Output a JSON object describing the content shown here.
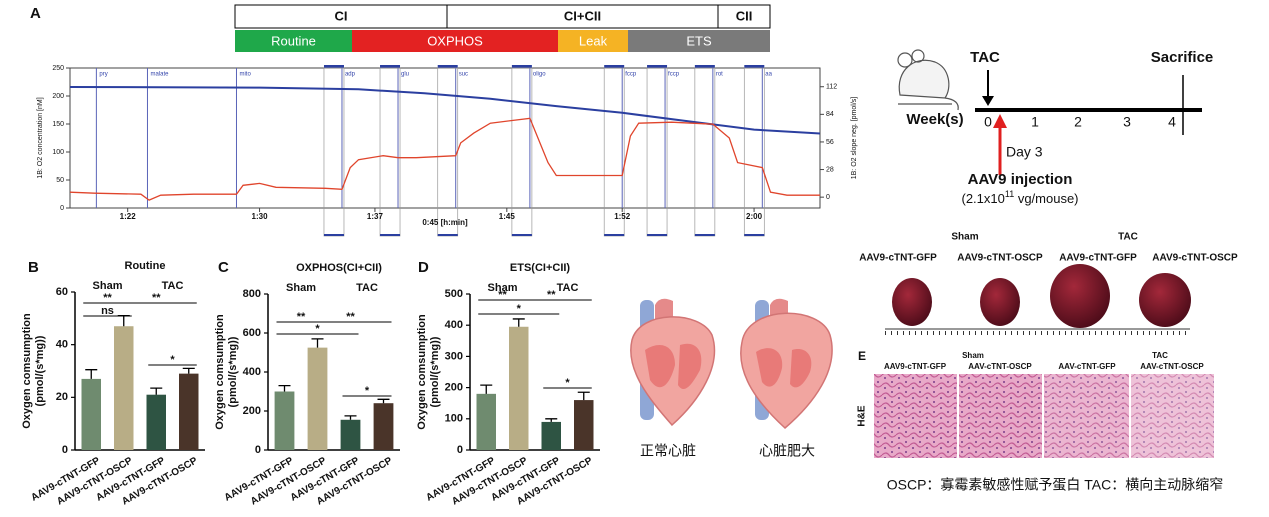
{
  "panels": {
    "A": "A",
    "B": "B",
    "C": "C",
    "D": "D",
    "E": "E"
  },
  "protocol": {
    "phases": [
      "CI",
      "CI+CII",
      "CII"
    ],
    "states": [
      {
        "label": "Routine",
        "color": "#1fa84a"
      },
      {
        "label": "OXPHOS",
        "color": "#e32222"
      },
      {
        "label": "Leak",
        "color": "#f5b324"
      },
      {
        "label": "ETS",
        "color": "#7a7a7a"
      }
    ]
  },
  "chart_data": [
    {
      "type": "line",
      "xlim": [
        78.5,
        124
      ],
      "xticks": [
        {
          "value": 82,
          "label": "1:22"
        },
        {
          "value": 90,
          "label": "1:30"
        },
        {
          "value": 97,
          "label": "1:37"
        },
        {
          "value": 105,
          "label": "1:45"
        },
        {
          "value": 112,
          "label": "1:52"
        },
        {
          "value": 120,
          "label": "2:00"
        }
      ],
      "x_label": "0:45 [h:min]",
      "ylim": [
        0,
        250
      ],
      "yticks": [
        0,
        50,
        100,
        150,
        200,
        250
      ],
      "y_label": "1B: O2 concentration [nM]",
      "y2lim": [
        -11,
        131
      ],
      "y2ticks": [
        0,
        28,
        56,
        84,
        112
      ],
      "y2_label": "1B: O2 slope neg. [pmol/s]",
      "events": [
        {
          "label": "pry",
          "x": 80.1
        },
        {
          "label": "malate",
          "x": 83.2
        },
        {
          "label": "mito",
          "x": 88.6
        },
        {
          "label": "adp",
          "x": 95.0
        },
        {
          "label": "glu",
          "x": 98.4
        },
        {
          "label": "suc",
          "x": 101.9
        },
        {
          "label": "oligo",
          "x": 106.4
        },
        {
          "label": "fccp",
          "x": 112.0
        },
        {
          "label": "fccp",
          "x": 114.6
        },
        {
          "label": "rot",
          "x": 117.5
        },
        {
          "label": "aa",
          "x": 120.5
        }
      ],
      "series": [
        {
          "color": "#2b3fa0",
          "axis": "y",
          "x": [
            78.5,
            90,
            96,
            100,
            104,
            108,
            112,
            116,
            120,
            124
          ],
          "values": [
            216,
            215,
            212,
            205,
            195,
            182,
            170,
            155,
            140,
            133
          ]
        },
        {
          "color": "#e0452c",
          "axis": "y2",
          "x": [
            78.5,
            80,
            82.8,
            83.3,
            84,
            86,
            88.6,
            89,
            90,
            91,
            94,
            95,
            95.5,
            96,
            97.5,
            98.4,
            99.5,
            101.9,
            102.2,
            103,
            104,
            106.4,
            107.5,
            108,
            112,
            112.5,
            113,
            115,
            117.5,
            118.5,
            119,
            120.5,
            121,
            122,
            124
          ],
          "values": [
            5,
            4,
            3,
            -3,
            2,
            3,
            3,
            12,
            14,
            10,
            9,
            8,
            30,
            38,
            42,
            40,
            40,
            42,
            55,
            65,
            75,
            80,
            35,
            22,
            22,
            62,
            75,
            76,
            74,
            60,
            35,
            30,
            5,
            2,
            2
          ]
        }
      ]
    },
    {
      "type": "bar",
      "title": "Routine",
      "y_label": [
        "Oxygen comsumption",
        "(pmol/(s*mg))"
      ],
      "categories": [
        "AAV9-cTNT-GFP",
        "AAV9-cTNT-OSCP",
        "AAV9-cTNT-GFP",
        "AAV9-cTNT-OSCP"
      ],
      "group_labels": [
        "Sham",
        "TAC"
      ],
      "values": [
        27,
        47,
        21,
        29
      ],
      "errors": [
        3.5,
        4,
        2.5,
        2
      ],
      "colors": [
        "#6f8b6f",
        "#b8ad86",
        "#2e5443",
        "#4a3429"
      ],
      "ylim": [
        0,
        60
      ],
      "yticks": [
        0,
        20,
        40,
        60
      ],
      "significance": [
        "**",
        "ns",
        "**",
        "*"
      ]
    },
    {
      "type": "bar",
      "title": "OXPHOS(CI+CII)",
      "y_label": [
        "Oxygen comsumption",
        "(pmol/(s*mg))"
      ],
      "categories": [
        "AAV9-cTNT-GFP",
        "AAV9-cTNT-OSCP",
        "AAV9-cTNT-GFP",
        "AAV9-cTNT-OSCP"
      ],
      "group_labels": [
        "Sham",
        "TAC"
      ],
      "values": [
        300,
        525,
        155,
        240
      ],
      "errors": [
        30,
        45,
        20,
        20
      ],
      "colors": [
        "#6f8b6f",
        "#b8ad86",
        "#2e5443",
        "#4a3429"
      ],
      "ylim": [
        0,
        800
      ],
      "yticks": [
        0,
        200,
        400,
        600,
        800
      ],
      "significance": [
        "**",
        "*",
        "**",
        "*"
      ]
    },
    {
      "type": "bar",
      "title": "ETS(CI+CII)",
      "y_label": [
        "Oxygen comsumption",
        "(pmol/(s*mg))"
      ],
      "categories": [
        "AAV9-cTNT-GFP",
        "AAV9-cTNT-OSCP",
        "AAV9-cTNT-GFP",
        "AAV9-cTNT-OSCP"
      ],
      "group_labels": [
        "Sham",
        "TAC"
      ],
      "values": [
        180,
        395,
        90,
        160
      ],
      "errors": [
        28,
        25,
        10,
        25
      ],
      "colors": [
        "#6f8b6f",
        "#b8ad86",
        "#2e5443",
        "#4a3429"
      ],
      "ylim": [
        0,
        500
      ],
      "yticks": [
        0,
        100,
        200,
        300,
        400,
        500
      ],
      "significance": [
        "**",
        "*",
        "**",
        "*"
      ]
    }
  ],
  "hearts": {
    "normal": "正常心脏",
    "hypertrophy": "心脏肥大"
  },
  "timeline": {
    "start_event": "TAC",
    "end_event": "Sacrifice",
    "axis_label": "Week(s)",
    "weeks": [
      "0",
      "1",
      "2",
      "3",
      "4"
    ],
    "injection_day": "Day 3",
    "injection": "AAV9 injection",
    "dose": [
      "(2.1x10",
      "11",
      " vg/mouse)"
    ]
  },
  "photos": {
    "groups": [
      "Sham",
      "TAC"
    ],
    "labels": [
      "AAV9-cTNT-GFP",
      "AAV9-cTNT-OSCP",
      "AAV9-cTNT-GFP",
      "AAV9-cTNT-OSCP"
    ]
  },
  "histology": {
    "stain": "H&E",
    "groups": [
      "Sham",
      "TAC"
    ],
    "labels": [
      "AAV9-cTNT-GFP",
      "AAV-cTNT-OSCP",
      "AAV-cTNT-GFP",
      "AAV-cTNT-OSCP"
    ]
  },
  "footnote": "OSCP：寡霉素敏感性赋予蛋白   TAC：横向主动脉缩窄"
}
